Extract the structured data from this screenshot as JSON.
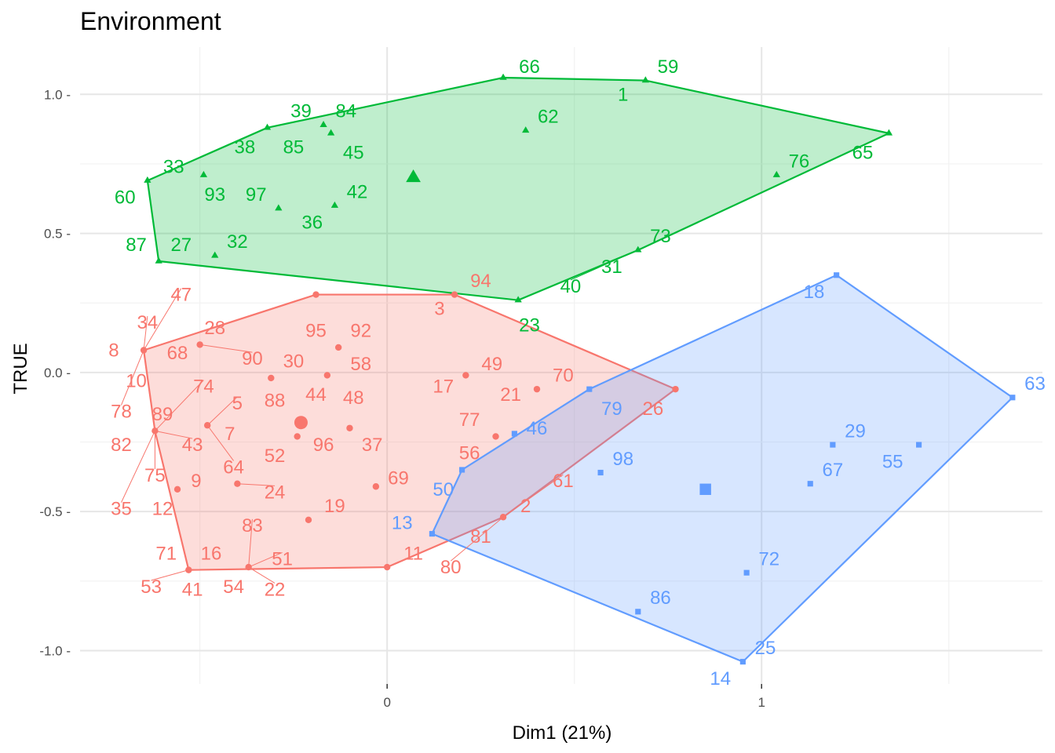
{
  "chart_data": {
    "type": "scatter",
    "title": "Environment",
    "xlabel": "Dim1 (21%)",
    "ylabel": "TRUE",
    "xlim": [
      -0.82,
      1.75
    ],
    "ylim": [
      -1.12,
      1.17
    ],
    "x_ticks": [
      0,
      1
    ],
    "y_ticks": [
      1.0,
      0.5,
      0.0,
      -0.5,
      -1.0
    ],
    "x_tick_labels": [
      "0",
      "1"
    ],
    "y_tick_labels": [
      "1.0 -",
      "0.5 -",
      "0.0 -",
      "-0.5 -",
      "-1.0 -"
    ],
    "grid": true,
    "series": [
      {
        "color": "#f8766d",
        "marker": "circle",
        "centroid": [
          -0.23,
          -0.18
        ],
        "hull": [
          [
            -0.65,
            0.08
          ],
          [
            -0.19,
            0.28
          ],
          [
            0.18,
            0.28
          ],
          [
            0.77,
            -0.06
          ],
          [
            0.31,
            -0.52
          ],
          [
            0.0,
            -0.7
          ],
          [
            -0.53,
            -0.71
          ],
          [
            -0.62,
            -0.21
          ]
        ],
        "points": [
          {
            "label": "47",
            "x": -0.65,
            "y": 0.08,
            "lx": -0.55,
            "ly": 0.28,
            "leader": true
          },
          {
            "label": "34",
            "x": -0.65,
            "y": 0.08,
            "lx": -0.64,
            "ly": 0.18,
            "leader": true
          },
          {
            "label": "8",
            "x": -0.65,
            "y": 0.08,
            "lx": -0.73,
            "ly": 0.08
          },
          {
            "label": "10",
            "x": -0.65,
            "y": 0.08,
            "lx": -0.67,
            "ly": -0.03
          },
          {
            "label": "78",
            "x": -0.65,
            "y": 0.08,
            "lx": -0.71,
            "ly": -0.14,
            "leader": true
          },
          {
            "label": "28",
            "x": -0.5,
            "y": 0.1,
            "lx": -0.46,
            "ly": 0.16
          },
          {
            "label": "68",
            "x": -0.5,
            "y": 0.1,
            "lx": -0.56,
            "ly": 0.07
          },
          {
            "label": "90",
            "x": -0.5,
            "y": 0.1,
            "lx": -0.36,
            "ly": 0.05,
            "leader": true
          },
          {
            "label": "95",
            "x": -0.19,
            "y": 0.28,
            "lx": -0.19,
            "ly": 0.15
          },
          {
            "label": "92",
            "x": -0.13,
            "y": 0.09,
            "lx": -0.07,
            "ly": 0.15
          },
          {
            "label": "30",
            "x": -0.31,
            "y": -0.02,
            "lx": -0.25,
            "ly": 0.04
          },
          {
            "label": "58",
            "x": -0.16,
            "y": -0.01,
            "lx": -0.07,
            "ly": 0.03
          },
          {
            "label": "88",
            "x": -0.31,
            "y": -0.02,
            "lx": -0.3,
            "ly": -0.1
          },
          {
            "label": "44",
            "x": -0.16,
            "y": -0.01,
            "lx": -0.19,
            "ly": -0.08
          },
          {
            "label": "48",
            "x": -0.16,
            "y": -0.01,
            "lx": -0.09,
            "ly": -0.09
          },
          {
            "label": "74",
            "x": -0.62,
            "y": -0.21,
            "lx": -0.49,
            "ly": -0.05,
            "leader": true
          },
          {
            "label": "5",
            "x": -0.48,
            "y": -0.19,
            "lx": -0.4,
            "ly": -0.11,
            "leader": true
          },
          {
            "label": "89",
            "x": -0.62,
            "y": -0.21,
            "lx": -0.6,
            "ly": -0.15
          },
          {
            "label": "7",
            "x": -0.48,
            "y": -0.19,
            "lx": -0.42,
            "ly": -0.22
          },
          {
            "label": "82",
            "x": -0.62,
            "y": -0.21,
            "lx": -0.71,
            "ly": -0.26
          },
          {
            "label": "43",
            "x": -0.62,
            "y": -0.21,
            "lx": -0.52,
            "ly": -0.26,
            "leader": true
          },
          {
            "label": "64",
            "x": -0.48,
            "y": -0.19,
            "lx": -0.41,
            "ly": -0.34,
            "leader": true
          },
          {
            "label": "75",
            "x": -0.62,
            "y": -0.21,
            "lx": -0.62,
            "ly": -0.37,
            "leader": true
          },
          {
            "label": "35",
            "x": -0.62,
            "y": -0.21,
            "lx": -0.71,
            "ly": -0.49,
            "leader": true
          },
          {
            "label": "9",
            "x": -0.56,
            "y": -0.42,
            "lx": -0.51,
            "ly": -0.39
          },
          {
            "label": "12",
            "x": -0.56,
            "y": -0.42,
            "lx": -0.6,
            "ly": -0.49
          },
          {
            "label": "24",
            "x": -0.4,
            "y": -0.4,
            "lx": -0.3,
            "ly": -0.43,
            "leader": true
          },
          {
            "label": "52",
            "x": -0.24,
            "y": -0.23,
            "lx": -0.3,
            "ly": -0.3
          },
          {
            "label": "96",
            "x": -0.24,
            "y": -0.23,
            "lx": -0.17,
            "ly": -0.26
          },
          {
            "label": "37",
            "x": -0.1,
            "y": -0.2,
            "lx": -0.04,
            "ly": -0.26
          },
          {
            "label": "19",
            "x": -0.21,
            "y": -0.53,
            "lx": -0.14,
            "ly": -0.48
          },
          {
            "label": "69",
            "x": -0.03,
            "y": -0.41,
            "lx": 0.03,
            "ly": -0.38
          },
          {
            "label": "83",
            "x": -0.37,
            "y": -0.7,
            "lx": -0.36,
            "ly": -0.55,
            "leader": true
          },
          {
            "label": "71",
            "x": -0.53,
            "y": -0.71,
            "lx": -0.59,
            "ly": -0.65
          },
          {
            "label": "16",
            "x": -0.53,
            "y": -0.71,
            "lx": -0.47,
            "ly": -0.65
          },
          {
            "label": "51",
            "x": -0.37,
            "y": -0.7,
            "lx": -0.28,
            "ly": -0.67,
            "leader": true
          },
          {
            "label": "53",
            "x": -0.53,
            "y": -0.71,
            "lx": -0.63,
            "ly": -0.77,
            "leader": true
          },
          {
            "label": "41",
            "x": -0.53,
            "y": -0.71,
            "lx": -0.52,
            "ly": -0.78
          },
          {
            "label": "54",
            "x": -0.37,
            "y": -0.7,
            "lx": -0.41,
            "ly": -0.77
          },
          {
            "label": "22",
            "x": -0.37,
            "y": -0.7,
            "lx": -0.3,
            "ly": -0.78,
            "leader": true
          },
          {
            "label": "94",
            "x": 0.18,
            "y": 0.28,
            "lx": 0.25,
            "ly": 0.33
          },
          {
            "label": "3",
            "x": 0.18,
            "y": 0.28,
            "lx": 0.14,
            "ly": 0.23
          },
          {
            "label": "49",
            "x": 0.21,
            "y": -0.01,
            "lx": 0.28,
            "ly": 0.03
          },
          {
            "label": "70",
            "x": 0.4,
            "y": -0.06,
            "lx": 0.47,
            "ly": -0.01
          },
          {
            "label": "17",
            "x": 0.21,
            "y": -0.01,
            "lx": 0.15,
            "ly": -0.05
          },
          {
            "label": "21",
            "x": 0.4,
            "y": -0.06,
            "lx": 0.33,
            "ly": -0.08
          },
          {
            "label": "77",
            "x": 0.29,
            "y": -0.23,
            "lx": 0.22,
            "ly": -0.17
          },
          {
            "label": "26",
            "x": 0.77,
            "y": -0.06,
            "lx": 0.71,
            "ly": -0.13
          },
          {
            "label": "56",
            "x": 0.29,
            "y": -0.23,
            "lx": 0.22,
            "ly": -0.29
          },
          {
            "label": "61",
            "x": 0.31,
            "y": -0.52,
            "lx": 0.47,
            "ly": -0.39,
            "leader": true
          },
          {
            "label": "2",
            "x": 0.31,
            "y": -0.52,
            "lx": 0.37,
            "ly": -0.48
          },
          {
            "label": "81",
            "x": 0.31,
            "y": -0.52,
            "lx": 0.25,
            "ly": -0.59
          },
          {
            "label": "80",
            "x": 0.31,
            "y": -0.52,
            "lx": 0.17,
            "ly": -0.7,
            "leader": true
          },
          {
            "label": "11",
            "x": 0.0,
            "y": -0.7,
            "lx": 0.07,
            "ly": -0.65
          }
        ]
      },
      {
        "color": "#00ba38",
        "marker": "triangle",
        "centroid": [
          0.07,
          0.7
        ],
        "hull": [
          [
            -0.64,
            0.69
          ],
          [
            -0.32,
            0.88
          ],
          [
            0.31,
            1.06
          ],
          [
            0.69,
            1.05
          ],
          [
            1.34,
            0.86
          ],
          [
            0.67,
            0.44
          ],
          [
            0.35,
            0.26
          ],
          [
            -0.61,
            0.4
          ]
        ],
        "points": [
          {
            "label": "66",
            "x": 0.31,
            "y": 1.06,
            "lx": 0.38,
            "ly": 1.1
          },
          {
            "label": "59",
            "x": 0.69,
            "y": 1.05,
            "lx": 0.75,
            "ly": 1.1
          },
          {
            "label": "1",
            "x": 0.69,
            "y": 1.05,
            "lx": 0.63,
            "ly": 1.0
          },
          {
            "label": "62",
            "x": 0.37,
            "y": 0.87,
            "lx": 0.43,
            "ly": 0.92
          },
          {
            "label": "39",
            "x": -0.17,
            "y": 0.89,
            "lx": -0.23,
            "ly": 0.94
          },
          {
            "label": "84",
            "x": -0.15,
            "y": 0.86,
            "lx": -0.11,
            "ly": 0.94
          },
          {
            "label": "38",
            "x": -0.32,
            "y": 0.88,
            "lx": -0.38,
            "ly": 0.81
          },
          {
            "label": "85",
            "x": -0.15,
            "y": 0.86,
            "lx": -0.25,
            "ly": 0.81
          },
          {
            "label": "45",
            "x": -0.15,
            "y": 0.86,
            "lx": -0.09,
            "ly": 0.79
          },
          {
            "label": "33",
            "x": -0.64,
            "y": 0.69,
            "lx": -0.57,
            "ly": 0.74
          },
          {
            "label": "76",
            "x": 1.04,
            "y": 0.71,
            "lx": 1.1,
            "ly": 0.76
          },
          {
            "label": "65",
            "x": 1.34,
            "y": 0.86,
            "lx": 1.27,
            "ly": 0.79
          },
          {
            "label": "93",
            "x": -0.49,
            "y": 0.71,
            "lx": -0.46,
            "ly": 0.64
          },
          {
            "label": "97",
            "x": -0.29,
            "y": 0.59,
            "lx": -0.35,
            "ly": 0.64
          },
          {
            "label": "42",
            "x": -0.14,
            "y": 0.6,
            "lx": -0.08,
            "ly": 0.65
          },
          {
            "label": "60",
            "x": -0.64,
            "y": 0.69,
            "lx": -0.7,
            "ly": 0.63
          },
          {
            "label": "36",
            "x": -0.14,
            "y": 0.6,
            "lx": -0.2,
            "ly": 0.54
          },
          {
            "label": "73",
            "x": 0.67,
            "y": 0.44,
            "lx": 0.73,
            "ly": 0.49
          },
          {
            "label": "87",
            "x": -0.61,
            "y": 0.4,
            "lx": -0.67,
            "ly": 0.46
          },
          {
            "label": "27",
            "x": -0.61,
            "y": 0.4,
            "lx": -0.55,
            "ly": 0.46
          },
          {
            "label": "32",
            "x": -0.46,
            "y": 0.42,
            "lx": -0.4,
            "ly": 0.47
          },
          {
            "label": "31",
            "x": 0.67,
            "y": 0.44,
            "lx": 0.6,
            "ly": 0.38,
            "leader": true
          },
          {
            "label": "40",
            "x": 0.67,
            "y": 0.44,
            "lx": 0.49,
            "ly": 0.31,
            "leader": true
          },
          {
            "label": "23",
            "x": 0.35,
            "y": 0.26,
            "lx": 0.38,
            "ly": 0.17
          }
        ]
      },
      {
        "color": "#619cff",
        "marker": "square",
        "centroid": [
          0.85,
          -0.42
        ],
        "hull": [
          [
            1.2,
            0.35
          ],
          [
            1.67,
            -0.09
          ],
          [
            0.95,
            -1.04
          ],
          [
            0.12,
            -0.58
          ],
          [
            0.2,
            -0.35
          ],
          [
            0.54,
            -0.06
          ]
        ],
        "points": [
          {
            "label": "18",
            "x": 1.2,
            "y": 0.35,
            "lx": 1.14,
            "ly": 0.29
          },
          {
            "label": "63",
            "x": 1.67,
            "y": -0.09,
            "lx": 1.73,
            "ly": -0.04
          },
          {
            "label": "79",
            "x": 0.54,
            "y": -0.06,
            "lx": 0.6,
            "ly": -0.13
          },
          {
            "label": "46",
            "x": 0.34,
            "y": -0.22,
            "lx": 0.4,
            "ly": -0.2
          },
          {
            "label": "29",
            "x": 1.19,
            "y": -0.26,
            "lx": 1.25,
            "ly": -0.21
          },
          {
            "label": "55",
            "x": 1.42,
            "y": -0.26,
            "lx": 1.35,
            "ly": -0.32
          },
          {
            "label": "98",
            "x": 0.57,
            "y": -0.36,
            "lx": 0.63,
            "ly": -0.31
          },
          {
            "label": "67",
            "x": 1.13,
            "y": -0.4,
            "lx": 1.19,
            "ly": -0.35
          },
          {
            "label": "50",
            "x": 0.2,
            "y": -0.35,
            "lx": 0.15,
            "ly": -0.42
          },
          {
            "label": "13",
            "x": 0.12,
            "y": -0.58,
            "lx": 0.04,
            "ly": -0.54
          },
          {
            "label": "72",
            "x": 0.96,
            "y": -0.72,
            "lx": 1.02,
            "ly": -0.67
          },
          {
            "label": "86",
            "x": 0.67,
            "y": -0.86,
            "lx": 0.73,
            "ly": -0.81
          },
          {
            "label": "25",
            "x": 0.95,
            "y": -1.04,
            "lx": 1.01,
            "ly": -0.99
          },
          {
            "label": "14",
            "x": 0.95,
            "y": -1.04,
            "lx": 0.89,
            "ly": -1.1
          }
        ]
      }
    ]
  }
}
